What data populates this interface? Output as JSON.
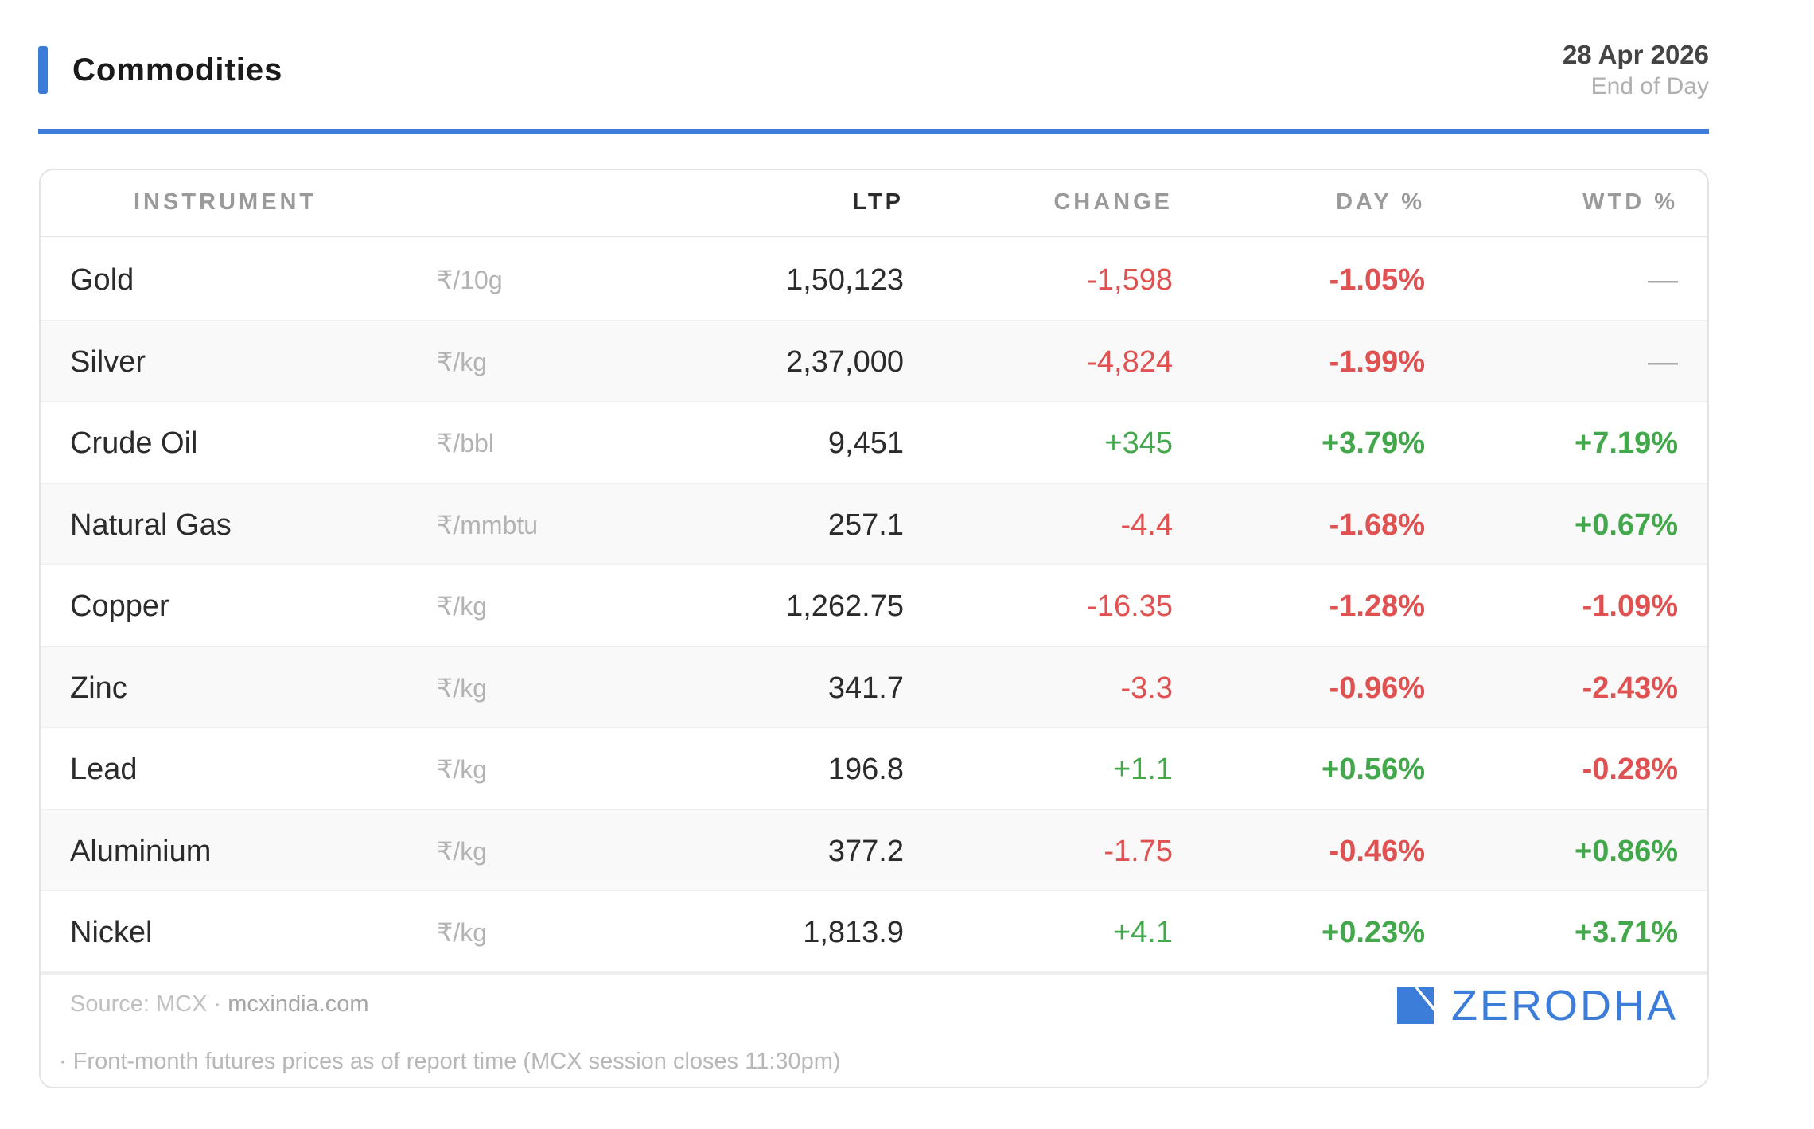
{
  "header": {
    "title": "Commodities",
    "date": "28 Apr 2026",
    "subtitle": "End of Day",
    "accent_color": "#3b7dd8"
  },
  "table": {
    "columns": {
      "instrument": "INSTRUMENT",
      "ltp": "LTP",
      "change": "CHANGE",
      "day": "DAY %",
      "wtd": "WTD %"
    },
    "rows": [
      {
        "name": "Gold",
        "unit": "₹/10g",
        "ltp": "1,50,123",
        "change": "-1,598",
        "change_dir": "neg",
        "day": "-1.05%",
        "day_dir": "neg",
        "wtd": "—",
        "wtd_dir": "dash"
      },
      {
        "name": "Silver",
        "unit": "₹/kg",
        "ltp": "2,37,000",
        "change": "-4,824",
        "change_dir": "neg",
        "day": "-1.99%",
        "day_dir": "neg",
        "wtd": "—",
        "wtd_dir": "dash"
      },
      {
        "name": "Crude Oil",
        "unit": "₹/bbl",
        "ltp": "9,451",
        "change": "+345",
        "change_dir": "pos",
        "day": "+3.79%",
        "day_dir": "pos",
        "wtd": "+7.19%",
        "wtd_dir": "pos"
      },
      {
        "name": "Natural Gas",
        "unit": "₹/mmbtu",
        "ltp": "257.1",
        "change": "-4.4",
        "change_dir": "neg",
        "day": "-1.68%",
        "day_dir": "neg",
        "wtd": "+0.67%",
        "wtd_dir": "pos"
      },
      {
        "name": "Copper",
        "unit": "₹/kg",
        "ltp": "1,262.75",
        "change": "-16.35",
        "change_dir": "neg",
        "day": "-1.28%",
        "day_dir": "neg",
        "wtd": "-1.09%",
        "wtd_dir": "neg"
      },
      {
        "name": "Zinc",
        "unit": "₹/kg",
        "ltp": "341.7",
        "change": "-3.3",
        "change_dir": "neg",
        "day": "-0.96%",
        "day_dir": "neg",
        "wtd": "-2.43%",
        "wtd_dir": "neg"
      },
      {
        "name": "Lead",
        "unit": "₹/kg",
        "ltp": "196.8",
        "change": "+1.1",
        "change_dir": "pos",
        "day": "+0.56%",
        "day_dir": "pos",
        "wtd": "-0.28%",
        "wtd_dir": "neg"
      },
      {
        "name": "Aluminium",
        "unit": "₹/kg",
        "ltp": "377.2",
        "change": "-1.75",
        "change_dir": "neg",
        "day": "-0.46%",
        "day_dir": "neg",
        "wtd": "+0.86%",
        "wtd_dir": "pos"
      },
      {
        "name": "Nickel",
        "unit": "₹/kg",
        "ltp": "1,813.9",
        "change": "+4.1",
        "change_dir": "pos",
        "day": "+0.23%",
        "day_dir": "pos",
        "wtd": "+3.71%",
        "wtd_dir": "pos"
      }
    ]
  },
  "footer": {
    "source_label": "Source: MCX · ",
    "source_site": "mcxindia.com",
    "note": "· Front-month futures prices as of report time (MCX session closes 11:30pm)",
    "brand": "ZERODHA",
    "brand_icon": "zerodha-logo-icon"
  },
  "colors": {
    "positive": "#43a84b",
    "negative": "#e05252",
    "brand": "#3b7dd8"
  }
}
